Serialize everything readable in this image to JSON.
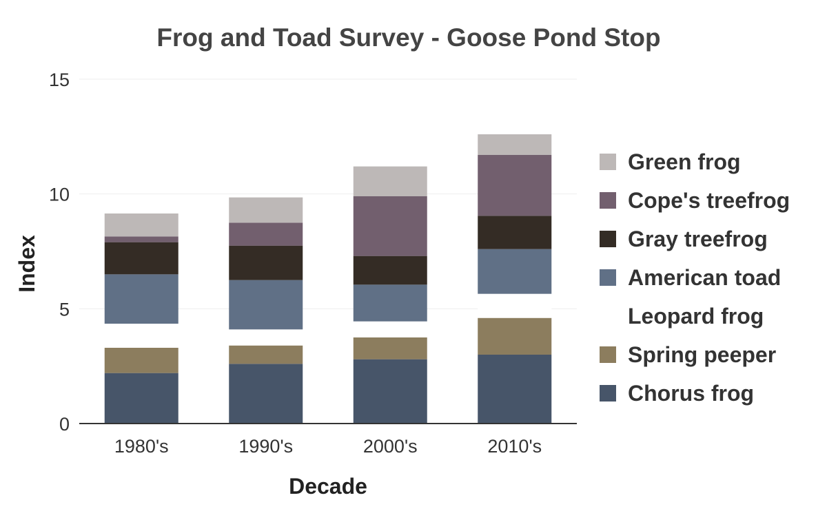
{
  "chart_data": {
    "type": "bar",
    "stacked": true,
    "title": "Frog and Toad Survey - Goose Pond Stop",
    "xlabel": "Decade",
    "ylabel": "Index",
    "ylim": [
      0,
      15
    ],
    "yticks": [
      0,
      5,
      10,
      15
    ],
    "grid": true,
    "legend_position": "right",
    "categories": [
      "1980's",
      "1990's",
      "2000's",
      "2010's"
    ],
    "series": [
      {
        "name": "Chorus frog",
        "color": "#475569",
        "values": [
          2.2,
          2.6,
          2.8,
          3.0
        ]
      },
      {
        "name": "Spring peeper",
        "color": "#8c7d5e",
        "values": [
          1.1,
          0.8,
          0.95,
          1.6
        ]
      },
      {
        "name": "Leopard frog",
        "color": "#ffffff",
        "values": [
          1.05,
          0.7,
          0.7,
          1.05
        ]
      },
      {
        "name": "American toad",
        "color": "#607086",
        "values": [
          2.15,
          2.15,
          1.6,
          1.95
        ]
      },
      {
        "name": "Gray treefrog",
        "color": "#342c25",
        "values": [
          1.4,
          1.5,
          1.25,
          1.45
        ]
      },
      {
        "name": "Cope's treefrog",
        "color": "#725f6e",
        "values": [
          0.25,
          1.0,
          2.6,
          2.65
        ]
      },
      {
        "name": "Green frog",
        "color": "#bdb8b7",
        "values": [
          1.0,
          1.1,
          1.3,
          0.9
        ]
      }
    ]
  }
}
